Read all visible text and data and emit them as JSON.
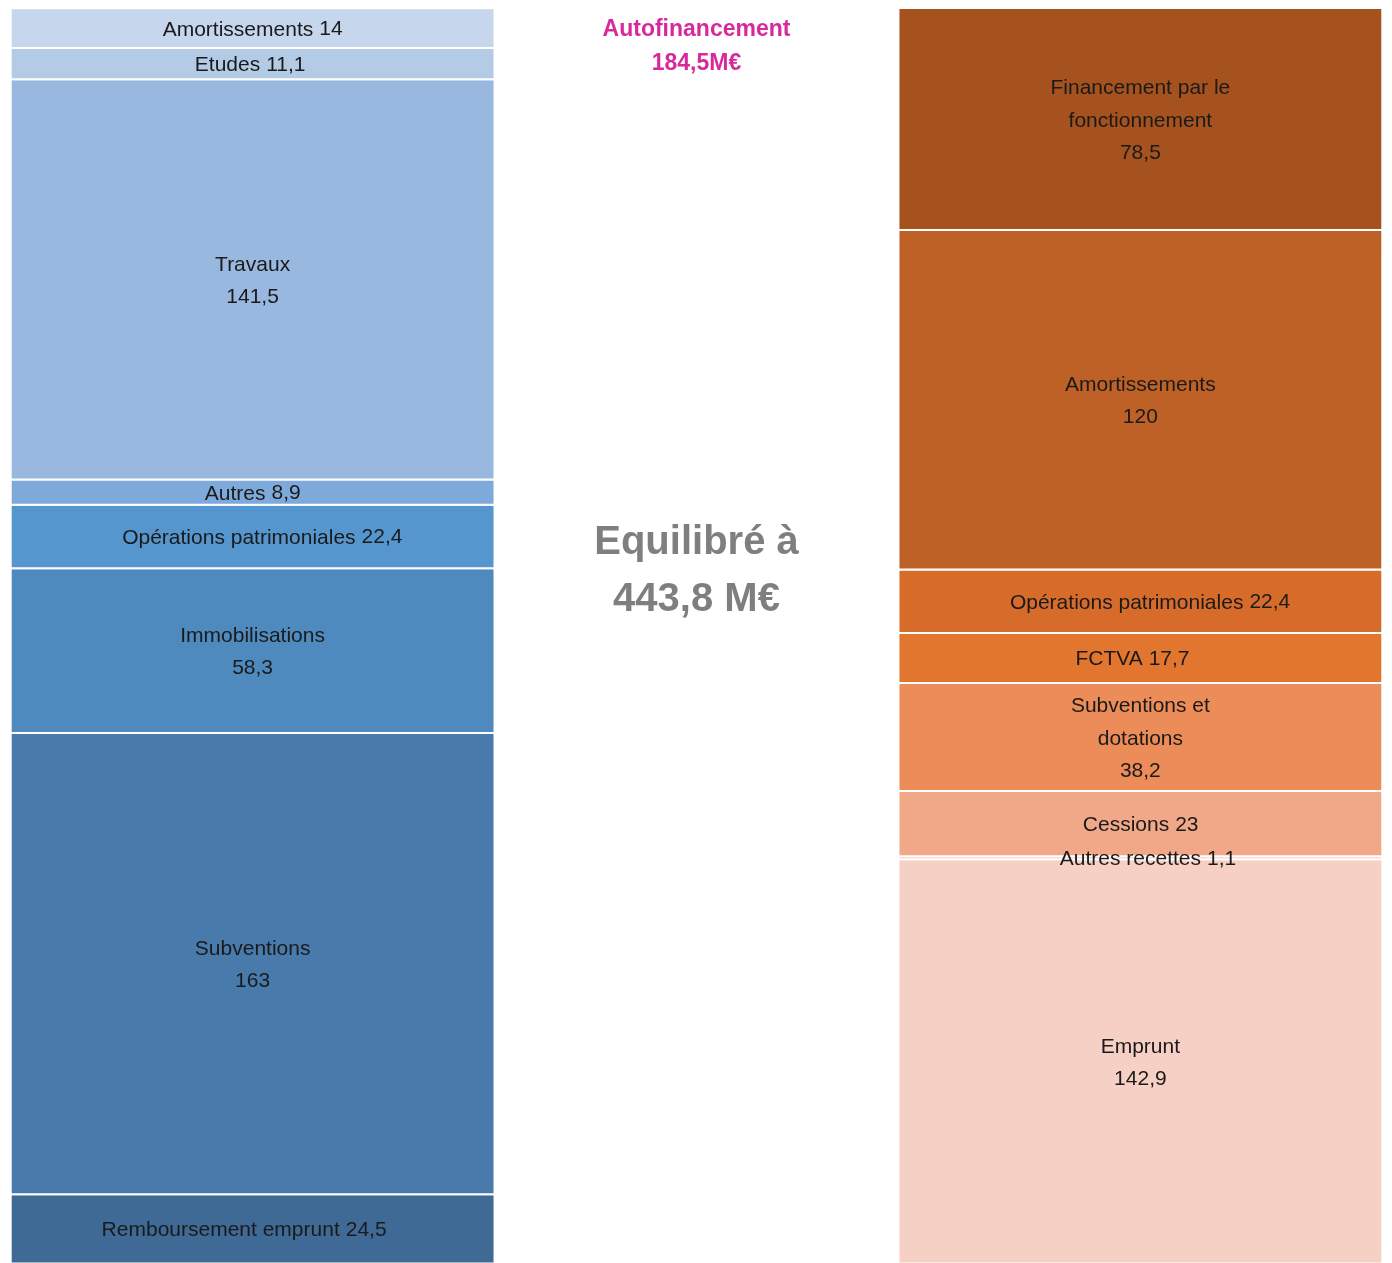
{
  "chart_data": {
    "type": "bar",
    "stacked": true,
    "categories": [
      null,
      null
    ],
    "series": [
      {
        "name": "Remboursement emprunt",
        "color": "#3e6a95",
        "values": [
          24.5,
          null
        ],
        "value_labels": [
          "24,5",
          null
        ]
      },
      {
        "name": "Subventions",
        "color": "#487bab",
        "values": [
          163,
          null
        ],
        "value_labels": [
          "163",
          null
        ]
      },
      {
        "name": "Immobilisations",
        "color": "#4f8abf",
        "values": [
          58.3,
          null
        ],
        "value_labels": [
          "58,3",
          null
        ]
      },
      {
        "name": "Opérations patrimoniales",
        "color": "#5596cf",
        "values": [
          22.4,
          null
        ],
        "value_labels": [
          "22,4",
          null
        ]
      },
      {
        "name": "Autres",
        "color": "#7eaadb",
        "values": [
          8.9,
          null
        ],
        "value_labels": [
          "8,9",
          null
        ]
      },
      {
        "name": "Travaux",
        "color": "#98b8df",
        "values": [
          141.5,
          null
        ],
        "value_labels": [
          "141,5",
          null
        ]
      },
      {
        "name": "Etudes",
        "color": "#b4cbe6",
        "values": [
          11.1,
          null
        ],
        "value_labels": [
          "11,1",
          null
        ]
      },
      {
        "name": "Amortissements",
        "color": "#c6d6ec",
        "values": [
          14,
          null
        ],
        "value_labels": [
          "14",
          null
        ]
      },
      {
        "name": "Emprunt",
        "color": "#f6d0c4",
        "values": [
          null,
          142.9
        ],
        "value_labels": [
          null,
          "142,9"
        ]
      },
      {
        "name": "Autres recettes",
        "color": "#f4c3b1",
        "values": [
          null,
          1.1
        ],
        "value_labels": [
          null,
          "1,1"
        ]
      },
      {
        "name": "Cessions",
        "color": "#f0a889",
        "values": [
          null,
          23
        ],
        "value_labels": [
          null,
          "23"
        ]
      },
      {
        "name": "Subventions et dotations",
        "color": "#ec8c58",
        "values": [
          null,
          38.2
        ],
        "value_labels": [
          null,
          "38,2"
        ]
      },
      {
        "name": "FCTVA",
        "color": "#e3762f",
        "values": [
          null,
          17.7
        ],
        "value_labels": [
          null,
          "17,7"
        ]
      },
      {
        "name": "Opérations patrimoniales",
        "color": "#d76c2a",
        "values": [
          null,
          22.4
        ],
        "value_labels": [
          null,
          "22,4"
        ]
      },
      {
        "name": "Amortissements",
        "color": "#be6126",
        "values": [
          null,
          120
        ],
        "value_labels": [
          null,
          "120"
        ]
      },
      {
        "name": "Financement par le fonctionnement",
        "color": "#a5521e",
        "values": [
          null,
          78.5
        ],
        "value_labels": [
          null,
          "78,5"
        ]
      }
    ],
    "annotations": [
      "Autofinancement\n184,5M€",
      "Equilibré à\n443,8 M€"
    ]
  }
}
